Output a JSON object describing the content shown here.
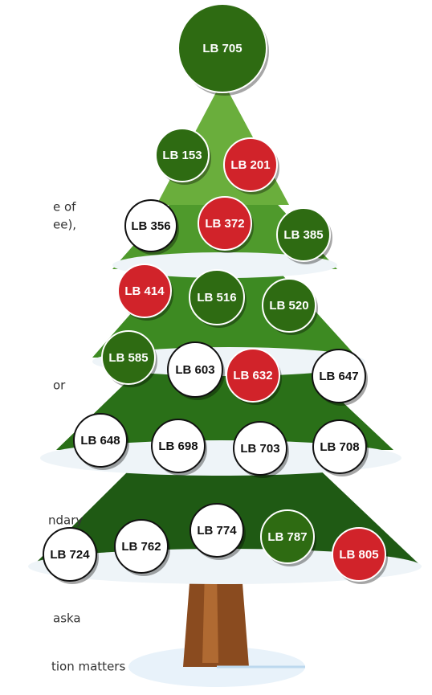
{
  "side_text": [
    "e of",
    "ee),",
    "or",
    "ndary",
    "aska",
    "tion matters"
  ],
  "ornaments": [
    {
      "label": "LB 705",
      "color": "#2e6b12"
    },
    {
      "label": "LB 153",
      "color": "#2e6b12"
    },
    {
      "label": "LB 201",
      "color": "#d1232a"
    },
    {
      "label": "LB 356",
      "color": "#ffffff"
    },
    {
      "label": "LB 372",
      "color": "#d1232a"
    },
    {
      "label": "LB 385",
      "color": "#2e6b12"
    },
    {
      "label": "LB 414",
      "color": "#d1232a"
    },
    {
      "label": "LB 516",
      "color": "#2e6b12"
    },
    {
      "label": "LB 520",
      "color": "#2e6b12"
    },
    {
      "label": "LB 585",
      "color": "#2e6b12"
    },
    {
      "label": "LB 603",
      "color": "#ffffff"
    },
    {
      "label": "LB 632",
      "color": "#d1232a"
    },
    {
      "label": "LB 647",
      "color": "#ffffff"
    },
    {
      "label": "LB 648",
      "color": "#ffffff"
    },
    {
      "label": "LB 698",
      "color": "#ffffff"
    },
    {
      "label": "LB 703",
      "color": "#ffffff"
    },
    {
      "label": "LB 708",
      "color": "#ffffff"
    },
    {
      "label": "LB 724",
      "color": "#ffffff"
    },
    {
      "label": "LB 762",
      "color": "#ffffff"
    },
    {
      "label": "LB 774",
      "color": "#ffffff"
    },
    {
      "label": "LB 787",
      "color": "#2e6b12"
    },
    {
      "label": "LB 805",
      "color": "#d1232a"
    }
  ]
}
